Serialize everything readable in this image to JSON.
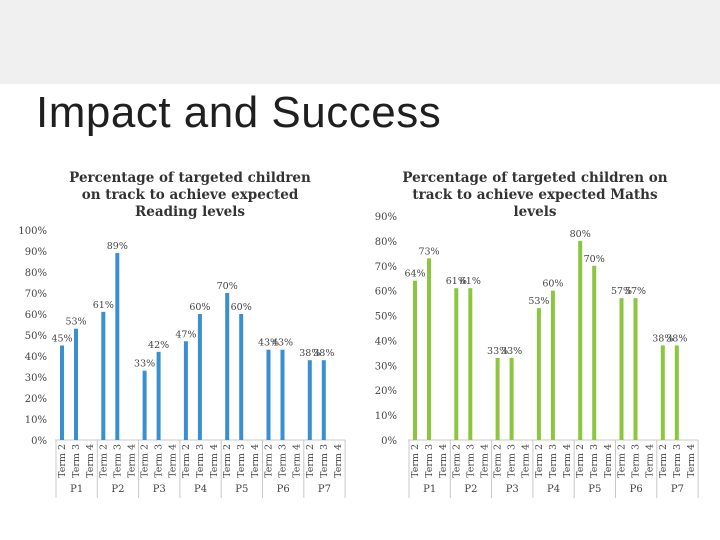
{
  "slide": {
    "title": "Impact and Success"
  },
  "colors": {
    "reading_bar": "#3a8fd0",
    "maths_bar": "#8cc63f",
    "axis": "#c8c8c8",
    "text": "#444444"
  },
  "chart_data": [
    {
      "type": "bar",
      "title": "Percentage of targeted children on track to achieve expected Reading levels",
      "groups": [
        "P1",
        "P2",
        "P3",
        "P4",
        "P5",
        "P6",
        "P7"
      ],
      "terms": [
        "Term 2",
        "Term 3",
        "Term 4"
      ],
      "ylim": [
        0,
        100
      ],
      "yticks": [
        "0%",
        "10%",
        "20%",
        "30%",
        "40%",
        "50%",
        "60%",
        "70%",
        "80%",
        "90%",
        "100%"
      ],
      "values": [
        [
          45,
          53,
          null
        ],
        [
          61,
          89,
          null
        ],
        [
          33,
          42,
          null
        ],
        [
          47,
          60,
          null
        ],
        [
          70,
          60,
          null
        ],
        [
          43,
          43,
          null
        ],
        [
          38,
          38,
          null
        ]
      ],
      "labels": [
        [
          "45%",
          "53%",
          ""
        ],
        [
          "61%",
          "89%",
          ""
        ],
        [
          "33%",
          "42%",
          ""
        ],
        [
          "47%",
          "60%",
          ""
        ],
        [
          "70%",
          "60%",
          ""
        ],
        [
          "43%",
          "43%",
          ""
        ],
        [
          "38%",
          "38%",
          ""
        ]
      ],
      "grid": false
    },
    {
      "type": "bar",
      "title": "Percentage of targeted children on track to achieve expected Maths levels",
      "groups": [
        "P1",
        "P2",
        "P3",
        "P4",
        "P5",
        "P6",
        "P7"
      ],
      "terms": [
        "Term 2",
        "Term 3",
        "Term 4"
      ],
      "ylim": [
        0,
        90
      ],
      "yticks": [
        "0%",
        "10%",
        "20%",
        "30%",
        "40%",
        "50%",
        "60%",
        "70%",
        "80%",
        "90%"
      ],
      "values": [
        [
          64,
          73,
          null
        ],
        [
          61,
          61,
          null
        ],
        [
          33,
          33,
          null
        ],
        [
          53,
          60,
          null
        ],
        [
          80,
          70,
          null
        ],
        [
          57,
          57,
          null
        ],
        [
          38,
          38,
          null
        ]
      ],
      "labels": [
        [
          "64%",
          "73%",
          ""
        ],
        [
          "61%",
          "61%",
          ""
        ],
        [
          "33%",
          "33%",
          ""
        ],
        [
          "53%",
          "60%",
          ""
        ],
        [
          "80%",
          "70%",
          ""
        ],
        [
          "57%",
          "57%",
          ""
        ],
        [
          "38%",
          "38%",
          ""
        ]
      ],
      "grid": false
    }
  ]
}
